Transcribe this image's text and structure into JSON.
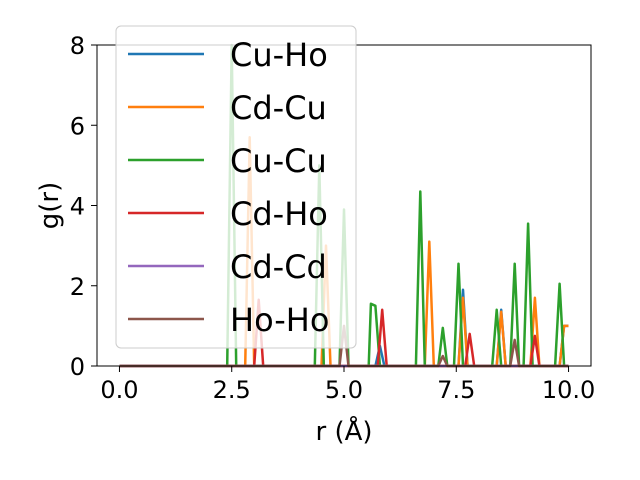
{
  "chart_data": {
    "type": "line",
    "title": "",
    "xlabel": "r (Å)",
    "ylabel": "g(r)",
    "xlim": [
      -0.5,
      10.5
    ],
    "ylim": [
      0,
      8
    ],
    "xticks": [
      0.0,
      2.5,
      5.0,
      7.5,
      10.0
    ],
    "xtick_labels": [
      "0.0",
      "2.5",
      "5.0",
      "7.5",
      "10.0"
    ],
    "yticks": [
      0,
      2,
      4,
      6,
      8
    ],
    "ytick_labels": [
      "0",
      "2",
      "4",
      "6",
      "8"
    ],
    "grid": false,
    "legend_position": "upper-left",
    "series": [
      {
        "name": "Cu-Ho",
        "color": "#1f77b4",
        "x": [
          0.0,
          5.7,
          5.8,
          5.9,
          6.0,
          7.55,
          7.65,
          7.75,
          8.4,
          8.5,
          8.6,
          9.8,
          9.9,
          10.0
        ],
        "y": [
          0,
          0,
          0.5,
          0,
          0,
          0,
          1.9,
          0,
          0,
          1.4,
          0,
          0,
          1.0,
          1.0
        ]
      },
      {
        "name": "Cd-Cu",
        "color": "#ff7f0e",
        "x": [
          0.0,
          2.8,
          2.9,
          3.0,
          4.5,
          4.6,
          4.7,
          6.8,
          6.9,
          7.0,
          7.55,
          7.65,
          7.75,
          8.4,
          8.5,
          8.6,
          9.15,
          9.25,
          9.35,
          9.8,
          9.9,
          10.0
        ],
        "y": [
          0,
          0,
          5.7,
          0,
          0,
          3.0,
          0,
          0,
          3.1,
          0,
          0,
          1.7,
          0,
          0,
          1.35,
          0,
          0,
          1.7,
          0,
          0,
          1.0,
          1.0
        ]
      },
      {
        "name": "Cu-Cu",
        "color": "#2ca02c",
        "x": [
          0.0,
          2.4,
          2.5,
          2.6,
          4.35,
          4.45,
          4.55,
          4.9,
          5.0,
          5.1,
          5.55,
          5.6,
          5.7,
          5.8,
          6.6,
          6.7,
          6.8,
          7.1,
          7.2,
          7.3,
          7.45,
          7.55,
          7.65,
          8.3,
          8.4,
          8.5,
          8.7,
          8.8,
          8.9,
          9.0,
          9.1,
          9.2,
          9.7,
          9.8,
          9.9,
          10.0
        ],
        "y": [
          0,
          0,
          8.0,
          0,
          0,
          5.0,
          0,
          0,
          3.9,
          0,
          0,
          1.55,
          1.5,
          0,
          0,
          4.35,
          0,
          0,
          0.95,
          0,
          0,
          2.55,
          0,
          0,
          1.4,
          0,
          0,
          2.55,
          0,
          0,
          3.55,
          0,
          0,
          2.05,
          0,
          0
        ]
      },
      {
        "name": "Cd-Ho",
        "color": "#d62728",
        "x": [
          0.0,
          3.0,
          3.1,
          3.2,
          5.75,
          5.85,
          5.95,
          7.7,
          7.8,
          7.9,
          9.15,
          9.25,
          9.35,
          10.0
        ],
        "y": [
          0,
          0,
          1.65,
          0,
          0,
          1.4,
          0,
          0,
          0.8,
          0,
          0,
          0.75,
          0,
          0
        ]
      },
      {
        "name": "Cd-Cd",
        "color": "#9467bd",
        "x": [
          0.0,
          10.0
        ],
        "y": [
          0,
          0
        ]
      },
      {
        "name": "Ho-Ho",
        "color": "#8c564b",
        "x": [
          0.0,
          4.9,
          5.0,
          5.1,
          7.1,
          7.2,
          7.3,
          8.7,
          8.8,
          8.9,
          10.0
        ],
        "y": [
          0,
          0,
          1.0,
          0,
          0,
          0.25,
          0,
          0,
          0.65,
          0,
          0
        ]
      }
    ]
  }
}
